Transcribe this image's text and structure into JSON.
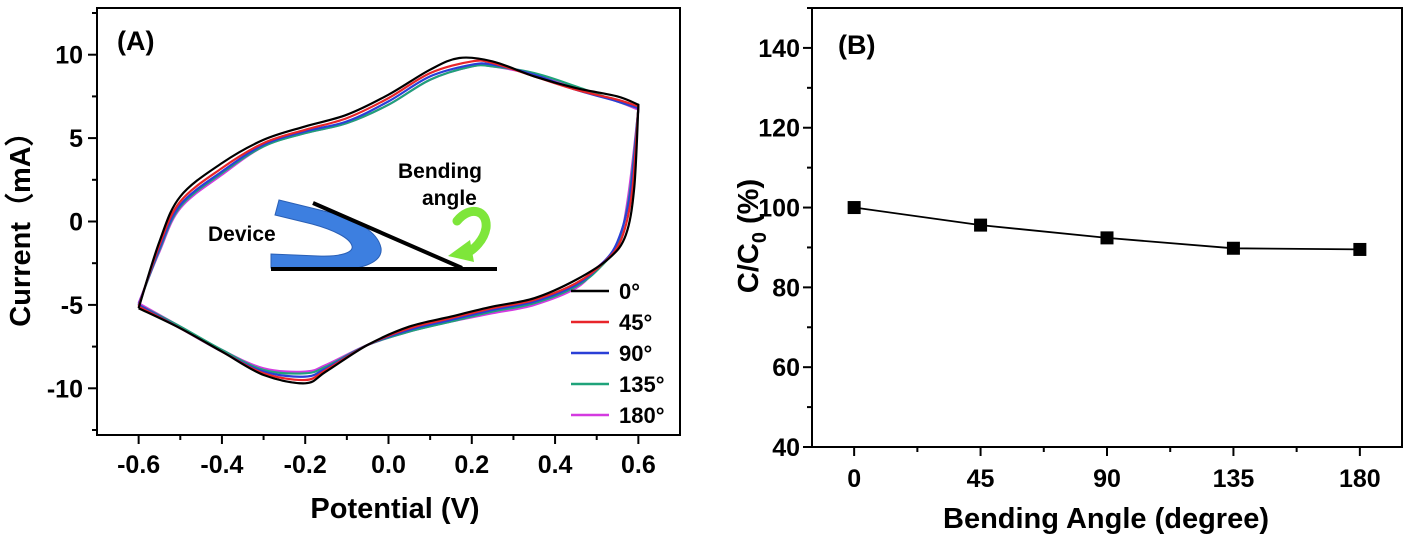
{
  "chart_data": [
    {
      "panel": "(A)",
      "type": "line",
      "xlabel": "Potential  (V)",
      "ylabel": "Current（mA）",
      "xlim": [
        -0.7,
        0.7
      ],
      "ylim": [
        -12.8,
        12.8
      ],
      "xticks": [
        -0.6,
        -0.4,
        -0.2,
        0.0,
        0.2,
        0.4,
        0.6
      ],
      "xtick_labels": [
        "-0.6",
        "-0.4",
        "-0.2",
        "0.0",
        "0.2",
        "0.4",
        "0.6"
      ],
      "yticks": [
        -10,
        -5,
        0,
        5,
        10
      ],
      "ytick_labels": [
        "-10",
        "-5",
        "0",
        "5",
        "10"
      ],
      "legend": "lower-right",
      "inset": {
        "device_label": "Device",
        "angle_label_line1": "Bending",
        "angle_label_line2": "angle"
      },
      "series": [
        {
          "name": "0°",
          "color": "#000000",
          "anodic": [
            [
              -0.6,
              -5.2
            ],
            [
              -0.55,
              -1.2
            ],
            [
              -0.5,
              1.5
            ],
            [
              -0.4,
              3.5
            ],
            [
              -0.3,
              4.9
            ],
            [
              -0.2,
              5.7
            ],
            [
              -0.1,
              6.4
            ],
            [
              0.0,
              7.6
            ],
            [
              0.1,
              9.1
            ],
            [
              0.17,
              9.8
            ],
            [
              0.25,
              9.6
            ],
            [
              0.35,
              8.7
            ],
            [
              0.45,
              8.0
            ],
            [
              0.55,
              7.5
            ],
            [
              0.6,
              7.0
            ]
          ],
          "cathodic": [
            [
              0.6,
              7.0
            ],
            [
              0.59,
              2.0
            ],
            [
              0.57,
              -0.8
            ],
            [
              0.53,
              -2.2
            ],
            [
              0.45,
              -3.5
            ],
            [
              0.35,
              -4.6
            ],
            [
              0.25,
              -5.1
            ],
            [
              0.15,
              -5.7
            ],
            [
              0.05,
              -6.3
            ],
            [
              -0.05,
              -7.4
            ],
            [
              -0.15,
              -9.0
            ],
            [
              -0.2,
              -9.7
            ],
            [
              -0.3,
              -9.2
            ],
            [
              -0.4,
              -7.8
            ],
            [
              -0.5,
              -6.4
            ],
            [
              -0.6,
              -5.2
            ]
          ]
        },
        {
          "name": "45°",
          "color": "#e8252a",
          "anodic": [
            [
              -0.6,
              -5.1
            ],
            [
              -0.55,
              -1.4
            ],
            [
              -0.5,
              1.2
            ],
            [
              -0.4,
              3.2
            ],
            [
              -0.3,
              4.7
            ],
            [
              -0.2,
              5.5
            ],
            [
              -0.1,
              6.2
            ],
            [
              0.0,
              7.4
            ],
            [
              0.1,
              8.9
            ],
            [
              0.2,
              9.6
            ],
            [
              0.25,
              9.5
            ],
            [
              0.35,
              8.7
            ],
            [
              0.45,
              7.9
            ],
            [
              0.55,
              7.3
            ],
            [
              0.6,
              6.9
            ]
          ],
          "cathodic": [
            [
              0.6,
              6.9
            ],
            [
              0.585,
              1.8
            ],
            [
              0.56,
              -1.0
            ],
            [
              0.52,
              -2.4
            ],
            [
              0.45,
              -3.7
            ],
            [
              0.35,
              -4.7
            ],
            [
              0.25,
              -5.2
            ],
            [
              0.15,
              -5.8
            ],
            [
              0.05,
              -6.4
            ],
            [
              -0.05,
              -7.4
            ],
            [
              -0.15,
              -8.9
            ],
            [
              -0.2,
              -9.5
            ],
            [
              -0.3,
              -9.1
            ],
            [
              -0.4,
              -7.8
            ],
            [
              -0.5,
              -6.4
            ],
            [
              -0.6,
              -5.1
            ]
          ]
        },
        {
          "name": "90°",
          "color": "#2a3fd6",
          "anodic": [
            [
              -0.6,
              -5.0
            ],
            [
              -0.55,
              -1.6
            ],
            [
              -0.5,
              1.0
            ],
            [
              -0.4,
              3.0
            ],
            [
              -0.3,
              4.6
            ],
            [
              -0.2,
              5.4
            ],
            [
              -0.1,
              6.0
            ],
            [
              0.0,
              7.2
            ],
            [
              0.1,
              8.7
            ],
            [
              0.2,
              9.4
            ],
            [
              0.25,
              9.4
            ],
            [
              0.35,
              8.8
            ],
            [
              0.45,
              7.9
            ],
            [
              0.55,
              7.2
            ],
            [
              0.6,
              6.8
            ]
          ],
          "cathodic": [
            [
              0.6,
              6.8
            ],
            [
              0.58,
              1.6
            ],
            [
              0.55,
              -1.2
            ],
            [
              0.51,
              -2.6
            ],
            [
              0.45,
              -3.8
            ],
            [
              0.35,
              -4.8
            ],
            [
              0.25,
              -5.3
            ],
            [
              0.15,
              -5.9
            ],
            [
              0.05,
              -6.5
            ],
            [
              -0.05,
              -7.4
            ],
            [
              -0.15,
              -8.8
            ],
            [
              -0.2,
              -9.3
            ],
            [
              -0.3,
              -9.0
            ],
            [
              -0.4,
              -7.8
            ],
            [
              -0.5,
              -6.4
            ],
            [
              -0.6,
              -5.0
            ]
          ]
        },
        {
          "name": "135°",
          "color": "#1fa37a",
          "anodic": [
            [
              -0.6,
              -5.0
            ],
            [
              -0.55,
              -1.7
            ],
            [
              -0.5,
              0.9
            ],
            [
              -0.4,
              2.9
            ],
            [
              -0.3,
              4.5
            ],
            [
              -0.2,
              5.3
            ],
            [
              -0.1,
              5.9
            ],
            [
              0.0,
              7.0
            ],
            [
              0.1,
              8.5
            ],
            [
              0.2,
              9.3
            ],
            [
              0.25,
              9.3
            ],
            [
              0.35,
              8.9
            ],
            [
              0.45,
              8.1
            ],
            [
              0.55,
              7.2
            ],
            [
              0.6,
              6.8
            ]
          ],
          "cathodic": [
            [
              0.6,
              6.8
            ],
            [
              0.578,
              1.5
            ],
            [
              0.55,
              -1.3
            ],
            [
              0.51,
              -2.7
            ],
            [
              0.45,
              -3.9
            ],
            [
              0.35,
              -4.9
            ],
            [
              0.25,
              -5.4
            ],
            [
              0.15,
              -6.0
            ],
            [
              0.05,
              -6.6
            ],
            [
              -0.05,
              -7.4
            ],
            [
              -0.15,
              -8.7
            ],
            [
              -0.2,
              -9.1
            ],
            [
              -0.3,
              -8.9
            ],
            [
              -0.4,
              -7.7
            ],
            [
              -0.5,
              -6.3
            ],
            [
              -0.6,
              -5.0
            ]
          ]
        },
        {
          "name": "180°",
          "color": "#d43ae0",
          "anodic": [
            [
              -0.6,
              -4.9
            ],
            [
              -0.55,
              -1.8
            ],
            [
              -0.5,
              0.8
            ],
            [
              -0.4,
              2.8
            ],
            [
              -0.3,
              4.5
            ],
            [
              -0.2,
              5.3
            ],
            [
              -0.1,
              5.9
            ],
            [
              0.0,
              7.0
            ],
            [
              0.1,
              8.5
            ],
            [
              0.2,
              9.3
            ],
            [
              0.25,
              9.3
            ],
            [
              0.35,
              8.8
            ],
            [
              0.45,
              8.0
            ],
            [
              0.55,
              7.2
            ],
            [
              0.6,
              6.7
            ]
          ],
          "cathodic": [
            [
              0.6,
              6.7
            ],
            [
              0.575,
              1.4
            ],
            [
              0.55,
              -1.4
            ],
            [
              0.5,
              -2.8
            ],
            [
              0.45,
              -4.0
            ],
            [
              0.35,
              -5.0
            ],
            [
              0.25,
              -5.5
            ],
            [
              0.15,
              -6.0
            ],
            [
              0.05,
              -6.6
            ],
            [
              -0.05,
              -7.4
            ],
            [
              -0.15,
              -8.6
            ],
            [
              -0.2,
              -9.0
            ],
            [
              -0.3,
              -8.8
            ],
            [
              -0.4,
              -7.7
            ],
            [
              -0.5,
              -6.3
            ],
            [
              -0.6,
              -4.9
            ]
          ]
        }
      ]
    },
    {
      "panel": "(B)",
      "type": "line",
      "xlabel": "Bending Angle (degree)",
      "ylabel_main": "C/C",
      "ylabel_sub": "0",
      "ylabel_tail": " (%)",
      "xlim": [
        -15,
        195
      ],
      "ylim": [
        40,
        150
      ],
      "xticks": [
        0,
        45,
        90,
        135,
        180
      ],
      "xtick_labels": [
        "0",
        "45",
        "90",
        "135",
        "180"
      ],
      "yticks": [
        40,
        60,
        80,
        100,
        120,
        140
      ],
      "ytick_labels": [
        "40",
        "60",
        "80",
        "100",
        "120",
        "140"
      ],
      "marker": "square",
      "x": [
        0,
        45,
        90,
        135,
        180
      ],
      "y": [
        100,
        95.6,
        92.4,
        89.8,
        89.5
      ]
    }
  ]
}
